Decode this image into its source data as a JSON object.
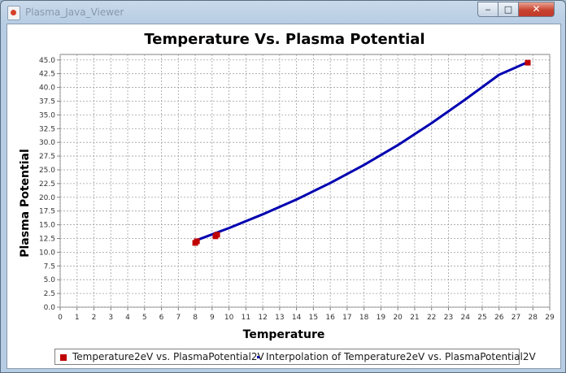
{
  "window": {
    "title": "Plasma_Java_Viewer",
    "buttons": {
      "minimize": "‒",
      "maximize": "□",
      "close": "✕"
    }
  },
  "chart_data": {
    "type": "line",
    "title": "Temperature Vs. Plasma Potential",
    "xlabel": "Temperature",
    "ylabel": "Plasma Potential",
    "xlim": [
      0,
      29
    ],
    "ylim": [
      0,
      46
    ],
    "x_ticks": [
      0,
      1,
      2,
      3,
      4,
      5,
      6,
      7,
      8,
      9,
      10,
      11,
      12,
      13,
      14,
      15,
      16,
      17,
      18,
      19,
      20,
      21,
      22,
      23,
      24,
      25,
      26,
      27,
      28,
      29
    ],
    "y_ticks": [
      0.0,
      2.5,
      5.0,
      7.5,
      10.0,
      12.5,
      15.0,
      17.5,
      20.0,
      22.5,
      25.0,
      27.5,
      30.0,
      32.5,
      35.0,
      37.5,
      40.0,
      42.5,
      45.0
    ],
    "y_tick_decimals": 1,
    "grid": true,
    "legend_position": "bottom",
    "series": [
      {
        "name": "Temperature2eV vs. PlasmaPotential2V",
        "kind": "scatter",
        "color": "#bf0000",
        "x": [
          8.0,
          8.1,
          9.2,
          9.3,
          27.7
        ],
        "y": [
          11.7,
          12.0,
          12.9,
          13.2,
          44.5
        ]
      },
      {
        "name": "Interpolation of Temperature2eV vs. PlasmaPotential2V",
        "kind": "line",
        "color": "#0000b0",
        "x": [
          8.0,
          10,
          12,
          14,
          16,
          18,
          20,
          22,
          24,
          26,
          27.7
        ],
        "y": [
          12.1,
          14.4,
          16.9,
          19.6,
          22.6,
          25.9,
          29.5,
          33.5,
          37.8,
          42.3,
          44.6
        ]
      }
    ]
  }
}
